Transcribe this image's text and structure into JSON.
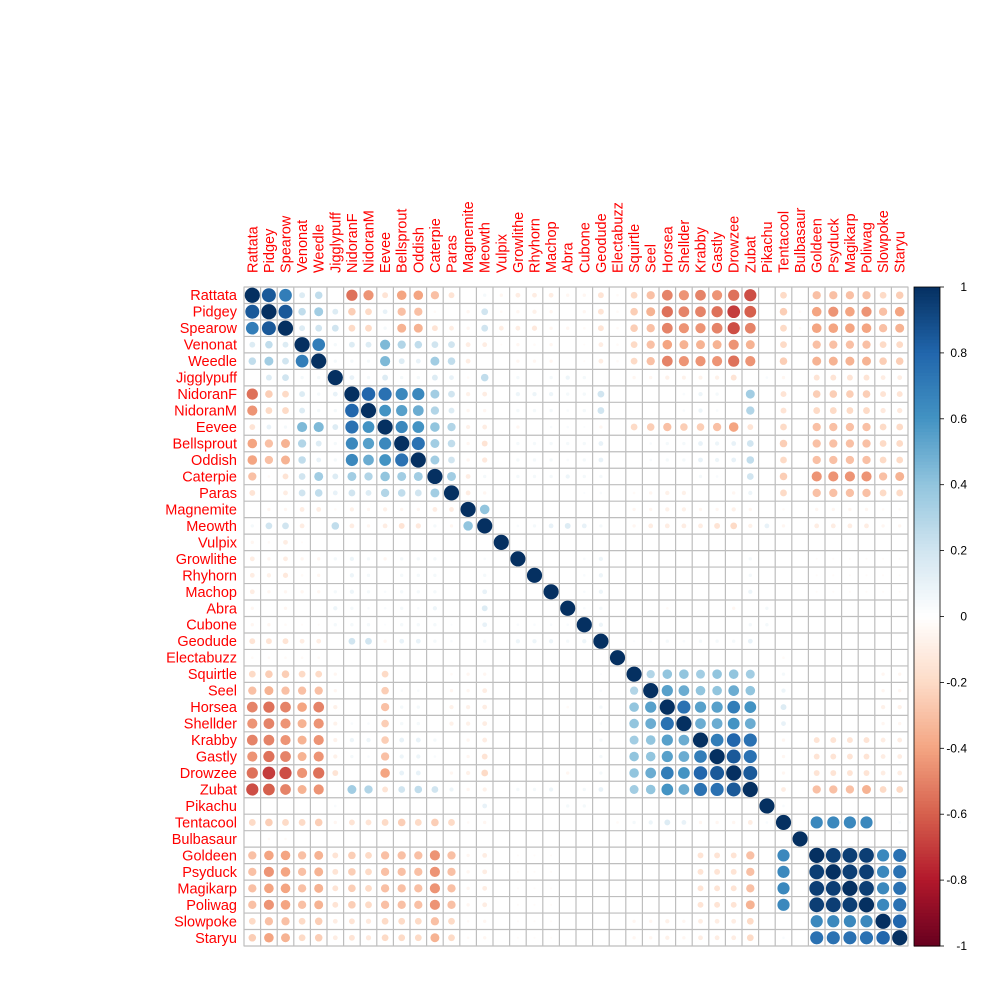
{
  "chart_data": {
    "type": "heatmap",
    "style": "corrplot-circle",
    "symmetric": true,
    "variables": [
      "Rattata",
      "Pidgey",
      "Spearow",
      "Venonat",
      "Weedle",
      "Jigglypuff",
      "NidoranF",
      "NidoranM",
      "Eevee",
      "Bellsprout",
      "Oddish",
      "Caterpie",
      "Paras",
      "Magnemite",
      "Meowth",
      "Vulpix",
      "Growlithe",
      "Rhyhorn",
      "Machop",
      "Abra",
      "Cubone",
      "Geodude",
      "Electabuzz",
      "Squirtle",
      "Seel",
      "Horsea",
      "Shellder",
      "Krabby",
      "Gastly",
      "Drowzee",
      "Zubat",
      "Pikachu",
      "Tentacool",
      "Bulbasaur",
      "Goldeen",
      "Psyduck",
      "Magikarp",
      "Poliwag",
      "Slowpoke",
      "Staryu"
    ],
    "matrix_upper": [
      [
        1,
        0.85,
        0.7,
        0.15,
        0.25,
        0,
        -0.55,
        -0.45,
        -0.15,
        -0.4,
        -0.4,
        -0.3,
        -0.15,
        0,
        0.05,
        -0.05,
        -0.1,
        -0.1,
        -0.1,
        -0.05,
        -0.05,
        -0.15,
        -0.03,
        -0.2,
        -0.3,
        -0.5,
        -0.45,
        -0.5,
        -0.45,
        -0.55,
        -0.65,
        0,
        -0.2,
        0,
        -0.3,
        -0.3,
        -0.3,
        -0.3,
        -0.2,
        -0.25
      ],
      [
        1,
        0.85,
        0.25,
        0.35,
        0.15,
        -0.25,
        -0.2,
        0.1,
        -0.3,
        -0.3,
        -0.03,
        0,
        -0.05,
        0.2,
        -0.03,
        -0.05,
        -0.08,
        -0.05,
        0,
        -0.05,
        -0.15,
        -0.03,
        -0.25,
        -0.35,
        -0.55,
        -0.5,
        -0.5,
        -0.55,
        -0.7,
        -0.6,
        0,
        -0.25,
        -0.03,
        -0.4,
        -0.45,
        -0.4,
        -0.45,
        -0.3,
        -0.4
      ],
      [
        1,
        0.15,
        0.2,
        0.2,
        -0.2,
        -0.2,
        0.05,
        -0.35,
        -0.35,
        -0.15,
        -0.1,
        -0.05,
        0.2,
        -0.1,
        -0.1,
        -0.12,
        -0.05,
        -0.05,
        -0.03,
        -0.15,
        -0.03,
        -0.25,
        -0.3,
        -0.5,
        -0.45,
        -0.45,
        -0.5,
        -0.65,
        -0.5,
        0,
        -0.2,
        -0.03,
        -0.4,
        -0.4,
        -0.4,
        -0.4,
        -0.3,
        -0.35
      ],
      [
        1,
        0.7,
        0.05,
        0.15,
        0.15,
        0.45,
        0.3,
        0.25,
        0.2,
        0.2,
        -0.1,
        -0.1,
        -0.02,
        -0.05,
        -0.03,
        -0.05,
        0,
        -0.02,
        -0.1,
        -0.03,
        -0.2,
        -0.3,
        -0.4,
        -0.35,
        -0.35,
        -0.35,
        -0.45,
        -0.35,
        0,
        -0.2,
        0,
        -0.3,
        -0.3,
        -0.3,
        -0.3,
        -0.2,
        -0.2
      ],
      [
        1,
        0.05,
        0.05,
        0.05,
        0.45,
        0.15,
        0.1,
        0.35,
        0.25,
        -0.1,
        0,
        0,
        -0.05,
        -0.05,
        -0.05,
        0,
        -0.02,
        -0.1,
        -0.03,
        -0.2,
        -0.3,
        -0.5,
        -0.45,
        -0.45,
        -0.45,
        -0.55,
        -0.45,
        0,
        -0.25,
        0,
        -0.35,
        -0.35,
        -0.35,
        -0.35,
        -0.25,
        -0.25
      ],
      [
        1,
        0.1,
        0.05,
        0.15,
        0.05,
        0.05,
        0.15,
        0.1,
        -0.03,
        0.25,
        0,
        0.05,
        0,
        0.05,
        0.08,
        0.05,
        0,
        0,
        -0.05,
        -0.05,
        -0.08,
        -0.07,
        -0.07,
        -0.08,
        -0.15,
        0,
        0.03,
        -0.05,
        0,
        -0.15,
        -0.15,
        -0.15,
        -0.15,
        -0.1,
        -0.1
      ],
      [
        1,
        0.8,
        0.75,
        0.65,
        0.65,
        0.35,
        0.2,
        -0.08,
        -0.1,
        0,
        0.08,
        0.08,
        0.08,
        0.05,
        0.05,
        0.2,
        0,
        0,
        0,
        0,
        0.03,
        0.08,
        0.05,
        0,
        0.35,
        0,
        -0.15,
        0,
        -0.25,
        -0.25,
        -0.25,
        -0.25,
        -0.15,
        -0.15
      ],
      [
        1,
        0.6,
        0.55,
        0.5,
        0.3,
        0.15,
        -0.05,
        -0.05,
        0,
        0.05,
        0.05,
        0.05,
        0.03,
        0.05,
        0.2,
        0,
        0,
        0,
        0,
        0.03,
        0.08,
        0.03,
        0,
        0.3,
        0,
        -0.15,
        0,
        -0.2,
        -0.2,
        -0.2,
        -0.2,
        -0.12,
        -0.12
      ],
      [
        1,
        0.65,
        0.6,
        0.4,
        0.3,
        -0.08,
        -0.1,
        0,
        -0.05,
        0,
        0.03,
        0.03,
        0.02,
        -0.05,
        0,
        -0.2,
        -0.25,
        -0.3,
        -0.25,
        -0.25,
        -0.3,
        -0.4,
        -0.15,
        0,
        -0.2,
        0,
        -0.3,
        -0.3,
        -0.3,
        -0.3,
        -0.2,
        -0.2
      ],
      [
        1,
        0.75,
        0.35,
        0.25,
        -0.05,
        -0.15,
        0,
        0.05,
        0.05,
        0.05,
        0.05,
        0.05,
        0.1,
        0,
        0,
        0.03,
        0.05,
        0.05,
        0.1,
        0.08,
        0.1,
        0.2,
        0,
        -0.25,
        0,
        -0.3,
        -0.3,
        -0.3,
        -0.3,
        -0.2,
        -0.2
      ],
      [
        1,
        0.35,
        0.2,
        -0.05,
        -0.12,
        0,
        0.05,
        0.05,
        0.05,
        0.03,
        0.05,
        0.1,
        0,
        0,
        0.03,
        0.05,
        0.05,
        0.1,
        0.08,
        0.1,
        0.25,
        0,
        -0.2,
        0,
        -0.3,
        -0.3,
        -0.3,
        -0.3,
        -0.2,
        -0.2
      ],
      [
        1,
        0.35,
        -0.1,
        0.05,
        0,
        0.05,
        0.05,
        0.05,
        0.08,
        0.05,
        0.05,
        0,
        0,
        0,
        0,
        0,
        0.05,
        0.03,
        0,
        0.2,
        0,
        -0.25,
        0,
        -0.45,
        -0.45,
        -0.45,
        -0.45,
        -0.3,
        -0.35
      ],
      [
        1,
        -0.1,
        -0.05,
        0,
        0,
        0,
        0,
        0,
        0.02,
        0.03,
        0,
        -0.03,
        -0.05,
        -0.08,
        -0.08,
        0,
        0,
        -0.05,
        0.08,
        0,
        -0.2,
        0,
        -0.3,
        -0.3,
        -0.3,
        -0.3,
        -0.2,
        -0.2
      ],
      [
        1,
        0.4,
        0,
        0,
        0,
        0,
        0,
        0,
        0,
        0,
        -0.05,
        -0.05,
        -0.08,
        -0.08,
        -0.05,
        -0.05,
        -0.08,
        -0.05,
        0,
        -0.03,
        0,
        -0.05,
        -0.05,
        -0.05,
        -0.05,
        -0.03,
        -0.03
      ],
      [
        1,
        0,
        0.03,
        0.05,
        0.1,
        0.15,
        0.1,
        0.05,
        0,
        -0.05,
        -0.1,
        -0.1,
        -0.1,
        -0.1,
        -0.15,
        -0.2,
        -0.08,
        0.1,
        -0.05,
        0,
        -0.1,
        -0.1,
        -0.1,
        -0.1,
        -0.05,
        -0.05
      ],
      [
        1,
        0,
        0,
        0,
        0,
        0,
        0,
        0,
        0,
        0,
        0,
        0,
        0,
        0,
        0,
        0,
        0,
        0,
        0,
        0,
        0,
        0,
        0,
        0,
        0
      ],
      [
        1,
        0,
        0,
        0,
        0.03,
        0.08,
        0,
        0,
        0,
        0,
        0,
        0,
        0,
        0,
        0.05,
        0,
        0,
        0,
        -0.02,
        -0.02,
        -0.02,
        -0.02,
        -0.02,
        -0.02
      ],
      [
        1,
        0,
        0,
        0.03,
        0.08,
        0,
        0,
        0,
        0,
        0,
        0,
        0,
        0,
        0.05,
        0,
        0,
        0,
        -0.02,
        -0.02,
        -0.02,
        -0.02,
        -0.02,
        -0.02
      ],
      [
        1,
        0,
        0.03,
        0.08,
        0,
        0,
        0,
        0,
        0,
        0,
        0,
        0,
        0.08,
        0,
        0,
        0,
        -0.02,
        -0.02,
        -0.02,
        -0.02,
        -0.02,
        -0.02
      ],
      [
        1,
        0.03,
        0.05,
        0,
        0,
        0,
        -0.03,
        0,
        0,
        0,
        -0.05,
        0,
        0.05,
        0,
        0,
        0,
        0,
        0,
        0,
        0,
        0
      ],
      [
        1,
        0.08,
        0,
        0,
        0,
        0,
        0,
        0,
        0,
        0,
        0.05,
        0.05,
        0,
        0,
        0,
        0,
        0,
        0,
        0,
        0
      ],
      [
        1,
        0,
        0.02,
        0.03,
        0.05,
        0.03,
        0.05,
        0.05,
        0.05,
        0.1,
        0,
        0,
        0,
        0,
        0,
        0,
        0,
        0,
        0
      ],
      [
        1,
        0,
        0,
        0,
        0,
        0,
        0,
        0,
        0,
        0,
        -0.03,
        0,
        0,
        0,
        0,
        0,
        0,
        0
      ],
      [
        1,
        0.3,
        0.4,
        0.4,
        0.35,
        0.4,
        0.4,
        0.35,
        0,
        0.05,
        0,
        0,
        0,
        0,
        0,
        -0.05,
        -0.05
      ],
      [
        1,
        0.55,
        0.5,
        0.4,
        0.4,
        0.5,
        0.4,
        0,
        0.08,
        0,
        0,
        0,
        0,
        0,
        -0.05,
        -0.05
      ],
      [
        1,
        0.75,
        0.55,
        0.55,
        0.7,
        0.6,
        0,
        0.15,
        0,
        0,
        0,
        0,
        0,
        -0.08,
        -0.08
      ],
      [
        1,
        0.5,
        0.5,
        0.6,
        0.5,
        0,
        0.1,
        0,
        0,
        0,
        0,
        0,
        -0.05,
        -0.05
      ],
      [
        1,
        0.7,
        0.8,
        0.75,
        0,
        -0.05,
        0,
        -0.15,
        -0.15,
        -0.15,
        -0.15,
        -0.1,
        -0.1
      ],
      [
        1,
        0.85,
        0.75,
        0,
        -0.05,
        0,
        -0.15,
        -0.15,
        -0.15,
        -0.15,
        -0.1,
        -0.1
      ],
      [
        1,
        0.85,
        0,
        -0.05,
        0,
        -0.15,
        -0.15,
        -0.15,
        -0.15,
        -0.1,
        -0.1
      ],
      [
        1,
        0,
        -0.1,
        0,
        -0.3,
        -0.3,
        -0.3,
        -0.35,
        -0.2,
        -0.2
      ],
      [
        1,
        0.03,
        0,
        0,
        0,
        0,
        0,
        0,
        0
      ],
      [
        1,
        0,
        0.65,
        0.65,
        0.65,
        0.65,
        0,
        0.03
      ],
      [
        1,
        0,
        0,
        0,
        0,
        0,
        0
      ],
      [
        1,
        0.95,
        0.95,
        0.95,
        0.65,
        0.75
      ],
      [
        1,
        0.95,
        0.95,
        0.65,
        0.75
      ],
      [
        1,
        0.95,
        0.65,
        0.75
      ],
      [
        1,
        0.65,
        0.75
      ],
      [
        1,
        0.8
      ],
      [
        1
      ]
    ],
    "colorbar": {
      "range": [
        -1,
        1
      ],
      "tick_labels": [
        "1",
        "0.8",
        "0.6",
        "0.4",
        "0.2",
        "0",
        "-0.2",
        "-0.4",
        "-0.6",
        "-0.8",
        "-1"
      ],
      "tick_values": [
        1,
        0.8,
        0.6,
        0.4,
        0.2,
        0,
        -0.2,
        -0.4,
        -0.6,
        -0.8,
        -1
      ]
    },
    "palette": [
      "#67001F",
      "#B2182B",
      "#D6604D",
      "#F4A582",
      "#FDDBC7",
      "#FFFFFF",
      "#D1E5F0",
      "#92C5DE",
      "#4393C3",
      "#2166AC",
      "#053061"
    ],
    "label_color": "#FF0000",
    "legend": "right"
  }
}
